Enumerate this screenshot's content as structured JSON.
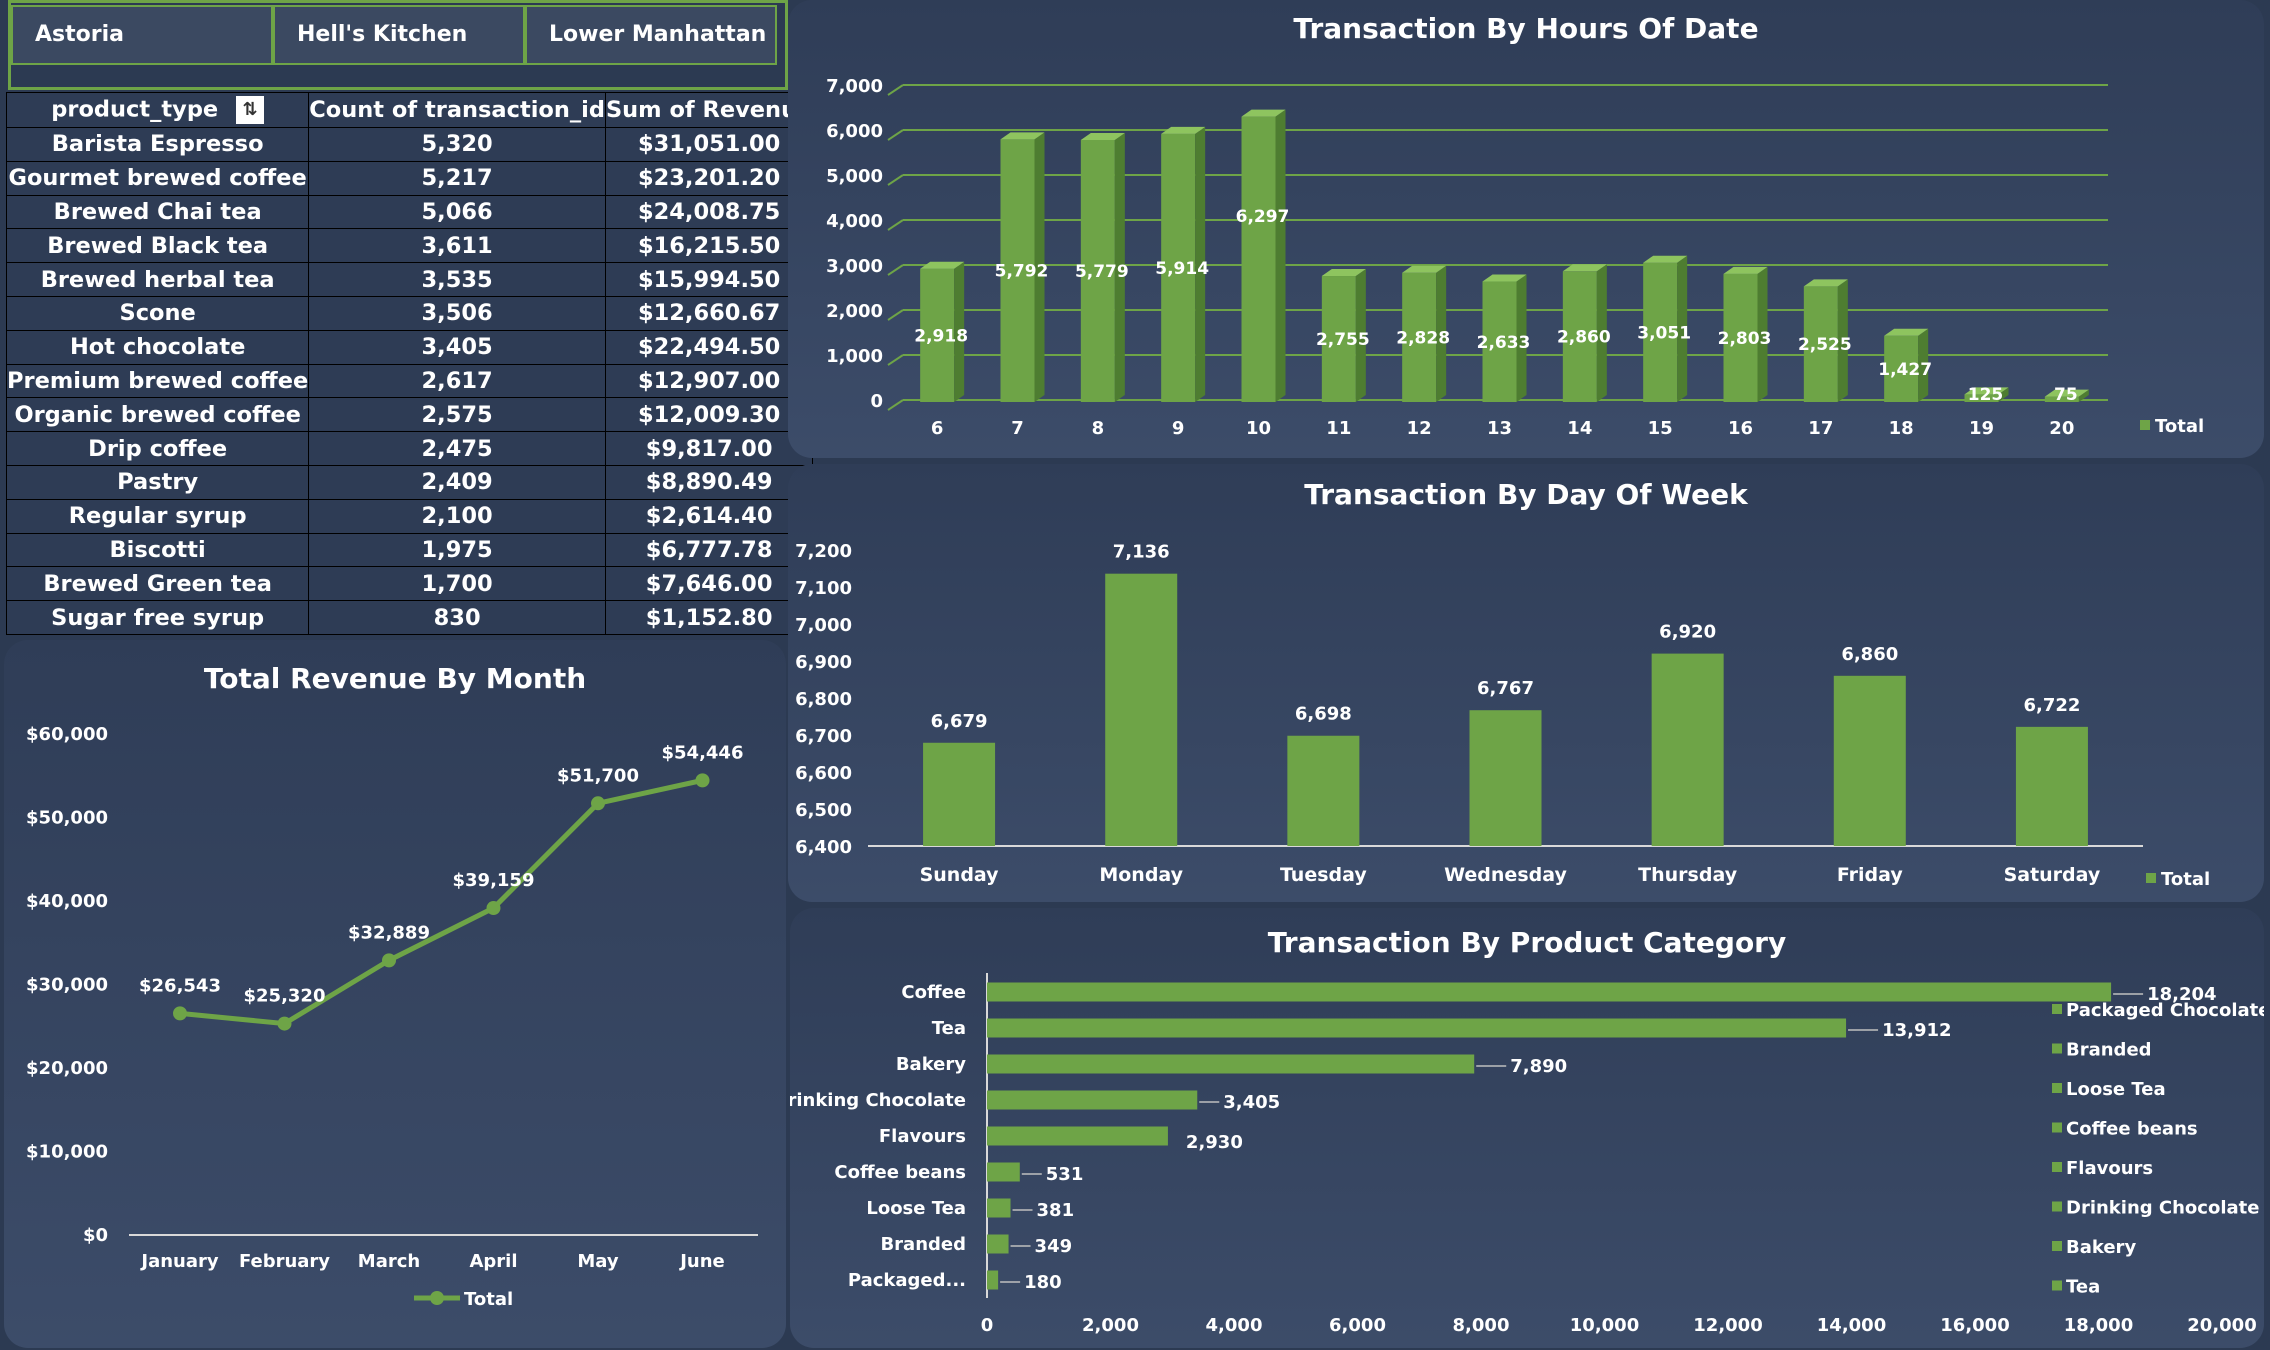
{
  "slicer": {
    "items": [
      "Astoria",
      "Hell's Kitchen",
      "Lower Manhattan"
    ]
  },
  "pivot": {
    "headers": [
      "product_type",
      "Count of transaction_id",
      "Sum of Revenue"
    ],
    "filter_icon": "sort-filter-icon",
    "rows": [
      [
        "Barista Espresso",
        "5,320",
        "$31,051.00"
      ],
      [
        "Gourmet brewed coffee",
        "5,217",
        "$23,201.20"
      ],
      [
        "Brewed Chai tea",
        "5,066",
        "$24,008.75"
      ],
      [
        "Brewed Black tea",
        "3,611",
        "$16,215.50"
      ],
      [
        "Brewed herbal tea",
        "3,535",
        "$15,994.50"
      ],
      [
        "Scone",
        "3,506",
        "$12,660.67"
      ],
      [
        "Hot chocolate",
        "3,405",
        "$22,494.50"
      ],
      [
        "Premium brewed coffee",
        "2,617",
        "$12,907.00"
      ],
      [
        "Organic brewed coffee",
        "2,575",
        "$12,009.30"
      ],
      [
        "Drip coffee",
        "2,475",
        "$9,817.00"
      ],
      [
        "Pastry",
        "2,409",
        "$8,890.49"
      ],
      [
        "Regular syrup",
        "2,100",
        "$2,614.40"
      ],
      [
        "Biscotti",
        "1,975",
        "$6,777.78"
      ],
      [
        "Brewed Green tea",
        "1,700",
        "$7,646.00"
      ],
      [
        "Sugar free syrup",
        "830",
        "$1,152.80"
      ]
    ]
  },
  "colors": {
    "accent": "#6ea447",
    "accent_dark": "#4e7d31",
    "background": "#2c3a52"
  },
  "chart_data": [
    {
      "id": "hours",
      "type": "bar",
      "title": "Transaction By Hours Of Date",
      "categories": [
        "6",
        "7",
        "8",
        "9",
        "10",
        "11",
        "12",
        "13",
        "14",
        "15",
        "16",
        "17",
        "18",
        "19",
        "20"
      ],
      "series": [
        {
          "name": "Total",
          "values": [
            2918,
            5792,
            5779,
            5914,
            6297,
            2755,
            2828,
            2633,
            2860,
            3051,
            2803,
            2525,
            1427,
            125,
            75
          ]
        }
      ],
      "data_labels": [
        "2,918",
        "5,792",
        "5,779",
        "5,914",
        "6,297",
        "2,755",
        "2,828",
        "2,633",
        "2,860",
        "3,051",
        "2,803",
        "2,525",
        "1,427",
        "125",
        "75"
      ],
      "ylim": [
        0,
        7000
      ],
      "y_ticks": [
        "0",
        "1,000",
        "2,000",
        "3,000",
        "4,000",
        "5,000",
        "6,000",
        "7,000"
      ],
      "grid": true,
      "legend": "right",
      "legend_label": "Total"
    },
    {
      "id": "dow",
      "type": "bar",
      "title": "Transaction By Day Of Week",
      "categories": [
        "Sunday",
        "Monday",
        "Tuesday",
        "Wednesday",
        "Thursday",
        "Friday",
        "Saturday"
      ],
      "series": [
        {
          "name": "Total",
          "values": [
            6679,
            7136,
            6698,
            6767,
            6920,
            6860,
            6722
          ]
        }
      ],
      "data_labels": [
        "6,679",
        "7,136",
        "6,698",
        "6,767",
        "6,920",
        "6,860",
        "6,722"
      ],
      "ylim": [
        6400,
        7200
      ],
      "y_ticks": [
        "6,400",
        "6,500",
        "6,600",
        "6,700",
        "6,800",
        "6,900",
        "7,000",
        "7,100",
        "7,200"
      ],
      "grid": false,
      "legend": "bottom-right",
      "legend_label": "Total"
    },
    {
      "id": "month",
      "type": "line",
      "title": "Total Revenue By Month",
      "categories": [
        "January",
        "February",
        "March",
        "April",
        "May",
        "June"
      ],
      "series": [
        {
          "name": "Total",
          "values": [
            26543,
            25320,
            32889,
            39159,
            51700,
            54446
          ]
        }
      ],
      "data_labels": [
        "$26,543",
        "$25,320",
        "$32,889",
        "$39,159",
        "$51,700",
        "$54,446"
      ],
      "ylim": [
        0,
        60000
      ],
      "y_ticks": [
        "$0",
        "$10,000",
        "$20,000",
        "$30,000",
        "$40,000",
        "$50,000",
        "$60,000"
      ],
      "grid": false,
      "legend": "bottom",
      "legend_label": "Total"
    },
    {
      "id": "category",
      "type": "bar",
      "orientation": "horizontal",
      "title": "Transaction By  Product Category",
      "categories": [
        "Coffee",
        "Tea",
        "Bakery",
        "Drinking Chocolate",
        "Flavours",
        "Coffee beans",
        "Loose Tea",
        "Branded",
        "Packaged..."
      ],
      "series": [
        {
          "name": "Total",
          "values": [
            18204,
            13912,
            7890,
            3405,
            2930,
            531,
            381,
            349,
            180
          ]
        }
      ],
      "data_labels": [
        "18,204",
        "13,912",
        "7,890",
        "3,405",
        "2,930",
        "531",
        "381",
        "349",
        "180"
      ],
      "xlim": [
        0,
        20000
      ],
      "x_ticks": [
        "0",
        "2,000",
        "4,000",
        "6,000",
        "8,000",
        "10,000",
        "12,000",
        "14,000",
        "16,000",
        "18,000",
        "20,000"
      ],
      "grid": false,
      "legend": "right",
      "legend_items": [
        "Packaged Chocolate",
        "Branded",
        "Loose Tea",
        "Coffee beans",
        "Flavours",
        "Drinking Chocolate",
        "Bakery",
        "Tea"
      ]
    }
  ]
}
